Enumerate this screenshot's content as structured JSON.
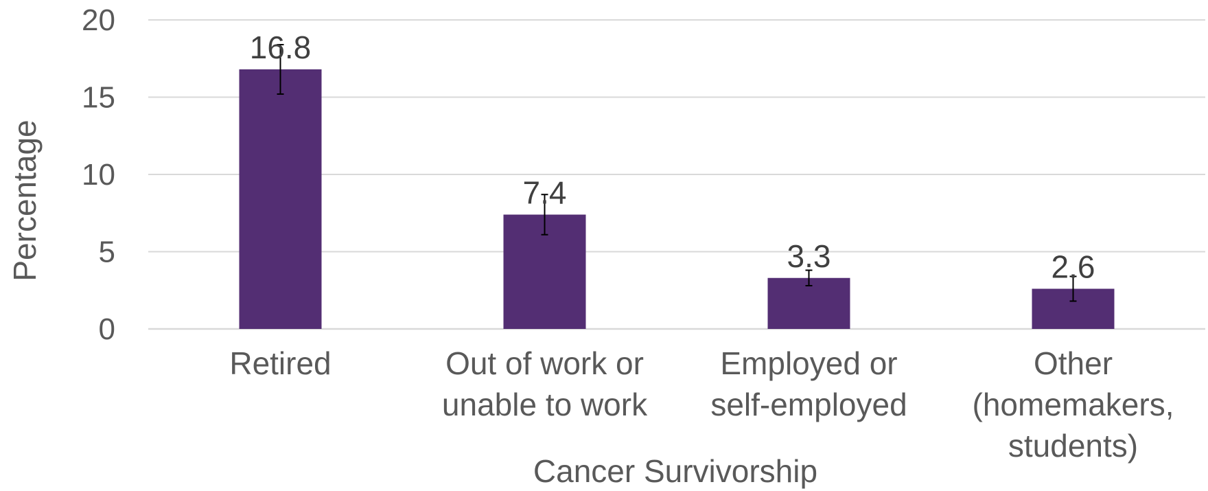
{
  "chart_data": {
    "type": "bar",
    "categories": [
      [
        "Retired"
      ],
      [
        "Out of work or",
        "unable to work"
      ],
      [
        "Employed or",
        "self-employed"
      ],
      [
        "Other",
        "(homemakers,",
        "students)"
      ]
    ],
    "values": [
      16.8,
      7.4,
      3.3,
      2.6
    ],
    "data_labels": [
      "16.8",
      "7.4",
      "3.3",
      "2.6"
    ],
    "error_bars": [
      {
        "low": 15.2,
        "high": 18.4
      },
      {
        "low": 6.1,
        "high": 8.7
      },
      {
        "low": 2.8,
        "high": 3.8
      },
      {
        "low": 1.8,
        "high": 3.4
      }
    ],
    "xlabel": "Cancer Survivorship",
    "ylabel": "Percentage",
    "ylim": [
      0,
      20
    ],
    "yticks": [
      "0",
      "5",
      "10",
      "15",
      "20"
    ],
    "grid": true,
    "legend": "none",
    "bar_color": "#532e73"
  }
}
